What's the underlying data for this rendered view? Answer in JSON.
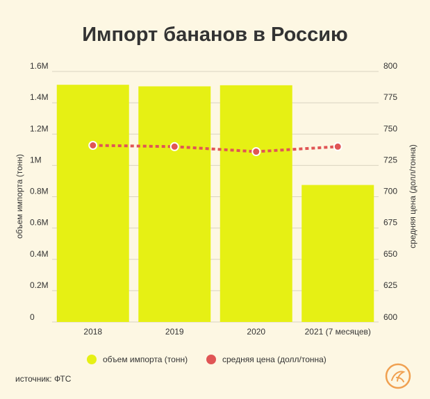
{
  "title": "Импорт бананов в Россию",
  "source": "источник: ФТС",
  "colors": {
    "background": "#fdf7e3",
    "bar": "#e6f014",
    "line": "#e05555",
    "gridline": "#d9d3c0",
    "logo": "#f0a050"
  },
  "chart_data": {
    "type": "bar",
    "categories": [
      "2018",
      "2019",
      "2020",
      "2021 (7 месяцев)"
    ],
    "series": [
      {
        "name": "объем импорта (тонн)",
        "type": "bar",
        "axis": "left",
        "values": [
          1515000,
          1505000,
          1512000,
          875000
        ]
      },
      {
        "name": "средняя цена (долл/тонна)",
        "type": "line",
        "axis": "right",
        "values": [
          741,
          740,
          736,
          740
        ]
      }
    ],
    "ylabel": "объем импорта (тонн)",
    "y2label": "средняя цена (долл/тонна)",
    "ylim": [
      0,
      1600000
    ],
    "y2lim": [
      600,
      800
    ],
    "yticks": [
      "0",
      "0.2M",
      "0.4M",
      "0.6M",
      "0.8M",
      "1M",
      "1.2M",
      "1.4M",
      "1.6M"
    ],
    "y2ticks": [
      "600",
      "625",
      "650",
      "675",
      "700",
      "725",
      "750",
      "775",
      "800"
    ],
    "grid": true,
    "legend_position": "bottom"
  }
}
